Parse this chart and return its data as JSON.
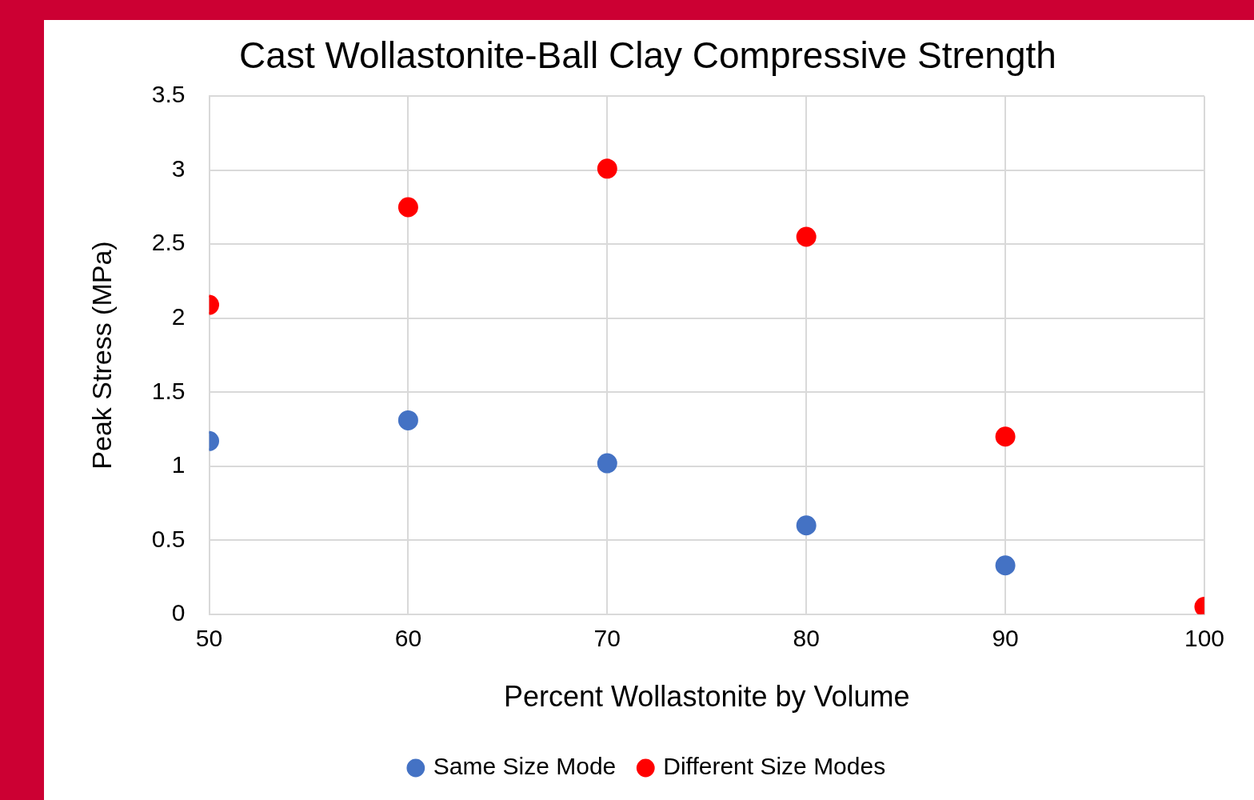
{
  "chart_data": {
    "type": "scatter",
    "title": "Cast Wollastonite-Ball Clay Compressive Strength",
    "xlabel": "Percent Wollastonite by Volume",
    "ylabel": "Peak Stress (MPa)",
    "xlim": [
      50,
      100
    ],
    "xticks": [
      50,
      60,
      70,
      80,
      90,
      100
    ],
    "ylim": [
      0,
      3.5
    ],
    "yticks": [
      0,
      0.5,
      1,
      1.5,
      2,
      2.5,
      3,
      3.5
    ],
    "grid": true,
    "legend": "bottom",
    "marker": "circle",
    "series": [
      {
        "name": "Same Size Mode",
        "color": "#4472c4",
        "x": [
          50,
          60,
          70,
          80,
          90
        ],
        "values": [
          1.17,
          1.31,
          1.02,
          0.6,
          0.33
        ]
      },
      {
        "name": "Different Size Modes",
        "color": "#ff0000",
        "x": [
          50,
          60,
          70,
          80,
          90,
          100
        ],
        "values": [
          2.09,
          2.75,
          3.01,
          2.55,
          1.2,
          0.05
        ]
      }
    ]
  }
}
